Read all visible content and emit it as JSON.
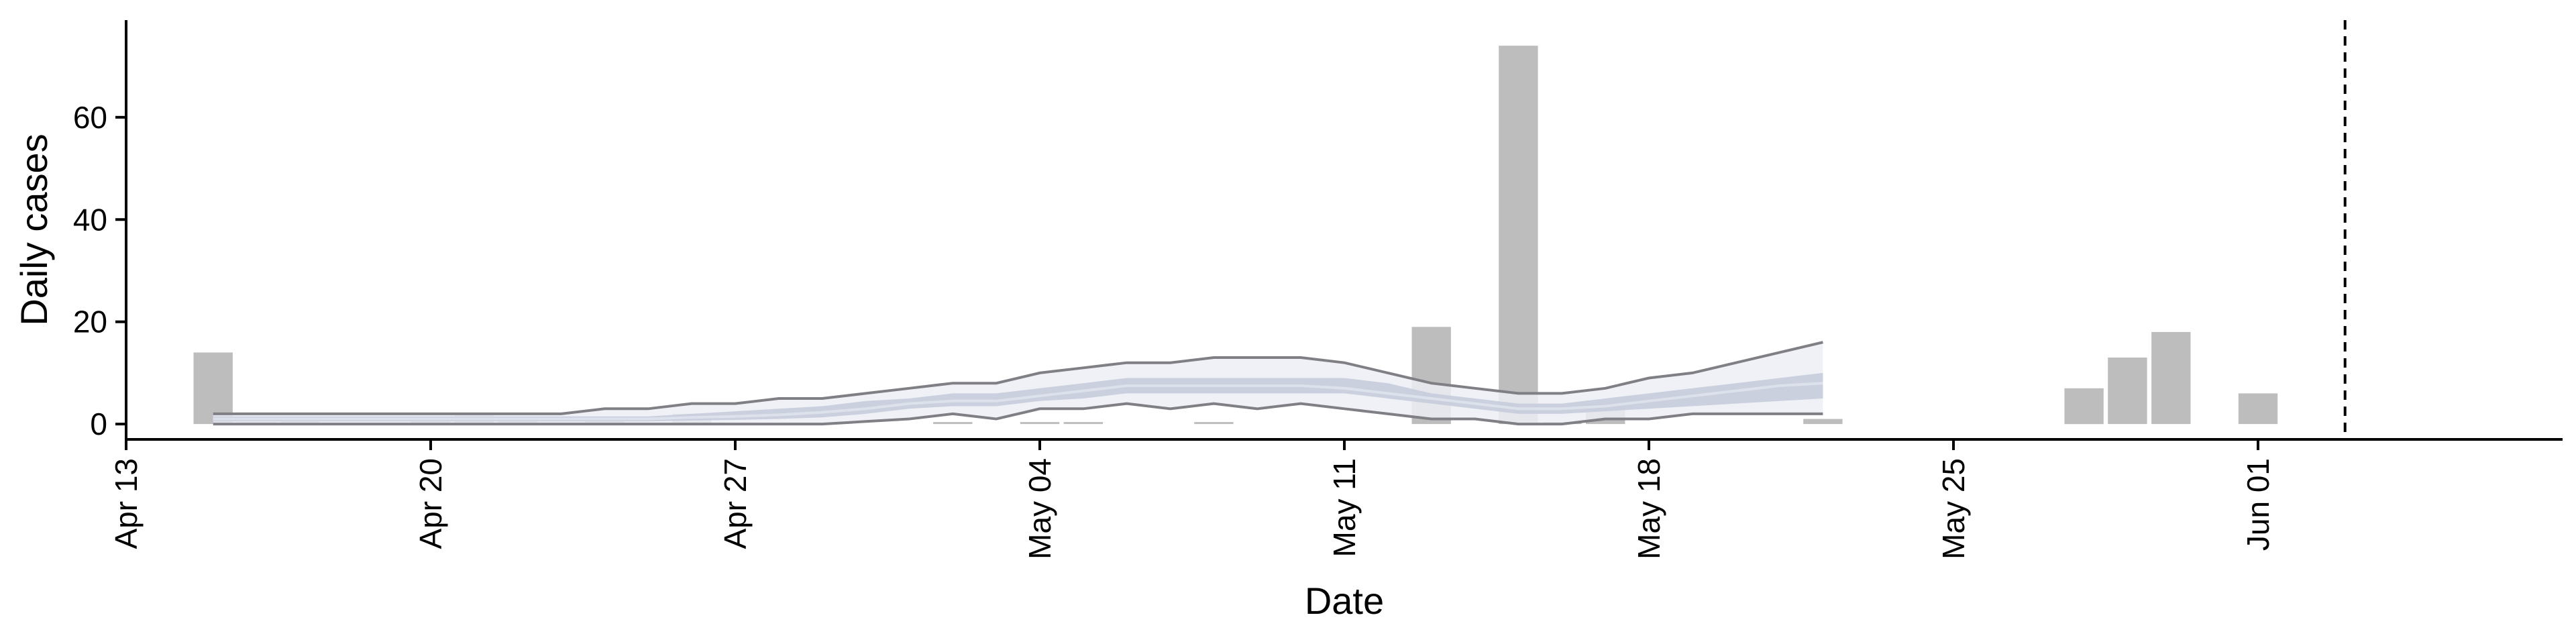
{
  "chart_data": {
    "type": "bar",
    "xlabel": "Date",
    "ylabel": "Daily cases",
    "x_range": [
      "2020-04-13",
      "2020-06-08"
    ],
    "ylim": [
      -3,
      79
    ],
    "x_ticks": [
      "Apr 13",
      "Apr 20",
      "Apr 27",
      "May 04",
      "May 11",
      "May 18",
      "May 25",
      "Jun 01"
    ],
    "y_ticks": [
      0,
      20,
      40,
      60
    ],
    "grid": false,
    "legend": "none",
    "vline_date": "2020-06-03",
    "colors": {
      "bars": "#bdbdbd",
      "band_outer": "#eceef4",
      "band_inner": "#c6ccdd",
      "band_edge": "#7f7f85",
      "median": "#dde1ec",
      "axis": "#000000"
    },
    "bars": {
      "dates": [
        "2020-04-15",
        "2020-04-16",
        "2020-04-17",
        "2020-04-20",
        "2020-04-21",
        "2020-04-22",
        "2020-04-24",
        "2020-04-26",
        "2020-05-02",
        "2020-05-04",
        "2020-05-05",
        "2020-05-08",
        "2020-05-13",
        "2020-05-15",
        "2020-05-16",
        "2020-05-17",
        "2020-05-22",
        "2020-05-28",
        "2020-05-29",
        "2020-05-30",
        "2020-06-01"
      ],
      "values": [
        14,
        0.4,
        1,
        1,
        2,
        1,
        1,
        2,
        0.4,
        0.4,
        0.4,
        0.4,
        19,
        74,
        0.4,
        4,
        1,
        7,
        13,
        18,
        6
      ]
    },
    "forecast_band": {
      "dates": [
        "2020-04-15",
        "2020-04-17",
        "2020-04-19",
        "2020-04-21",
        "2020-04-23",
        "2020-04-24",
        "2020-04-25",
        "2020-04-26",
        "2020-04-27",
        "2020-04-28",
        "2020-04-29",
        "2020-04-30",
        "2020-05-01",
        "2020-05-02",
        "2020-05-03",
        "2020-05-04",
        "2020-05-05",
        "2020-05-06",
        "2020-05-07",
        "2020-05-08",
        "2020-05-09",
        "2020-05-10",
        "2020-05-11",
        "2020-05-12",
        "2020-05-13",
        "2020-05-14",
        "2020-05-15",
        "2020-05-16",
        "2020-05-17",
        "2020-05-18",
        "2020-05-19",
        "2020-05-20",
        "2020-05-21",
        "2020-05-22"
      ],
      "lower90": [
        0,
        0,
        0,
        0,
        0,
        0,
        0,
        0,
        0,
        0,
        0,
        0.5,
        1,
        2,
        1,
        3,
        3,
        4,
        3,
        4,
        3,
        4,
        3,
        2,
        1,
        1,
        0,
        0,
        1,
        1,
        2,
        2,
        2,
        2
      ],
      "lower50": [
        0.5,
        0.5,
        0.5,
        0.5,
        0.5,
        0.5,
        0.5,
        0.7,
        0.8,
        1,
        1.3,
        2,
        3,
        3.5,
        3.5,
        4.5,
        5,
        6,
        6,
        6,
        6,
        6,
        6,
        5,
        4,
        3,
        2,
        2,
        2.5,
        3,
        3.5,
        4,
        4.5,
        5
      ],
      "median": [
        1,
        1,
        1,
        1,
        1,
        1,
        1,
        1.3,
        1.5,
        1.8,
        2.3,
        3,
        4,
        4.5,
        4.5,
        5.5,
        6.5,
        7.5,
        7.5,
        7.5,
        7.5,
        7.5,
        7,
        6,
        5,
        4,
        3,
        3,
        3.5,
        4.5,
        5.5,
        6.5,
        7.5,
        8
      ],
      "upper50": [
        1.5,
        1.5,
        1.5,
        1.5,
        1.5,
        1.5,
        1.5,
        2,
        2.5,
        3,
        3.5,
        4.5,
        5,
        6,
        6,
        7,
        8,
        9,
        9,
        9,
        9,
        9,
        9,
        8,
        6,
        5,
        4,
        4,
        5,
        6,
        7,
        8,
        9,
        10
      ],
      "upper90": [
        2,
        2,
        2,
        2,
        2,
        3,
        3,
        4,
        4,
        5,
        5,
        6,
        7,
        8,
        8,
        10,
        11,
        12,
        12,
        13,
        13,
        13,
        12,
        10,
        8,
        7,
        6,
        6,
        7,
        9,
        10,
        12,
        14,
        16
      ]
    }
  }
}
